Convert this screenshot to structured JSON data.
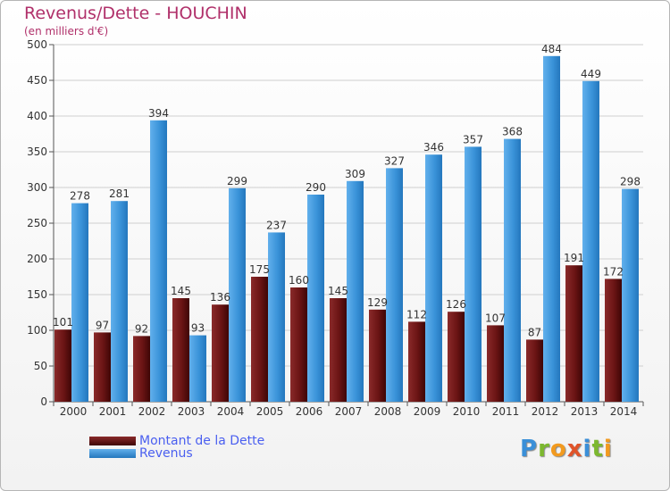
{
  "chart_data": {
    "type": "bar",
    "title": "Revenus/Dette - HOUCHIN",
    "subtitle": "(en milliers d'€)",
    "xlabel": "",
    "ylabel": "",
    "ylim": [
      0,
      500
    ],
    "yticks": [
      0,
      50,
      100,
      150,
      200,
      250,
      300,
      350,
      400,
      450,
      500
    ],
    "grid": true,
    "legend": [
      "Montant de la Dette",
      "Revenus"
    ],
    "legend_position": "bottom-left",
    "categories": [
      "2000",
      "2001",
      "2002",
      "2003",
      "2004",
      "2005",
      "2006",
      "2007",
      "2008",
      "2009",
      "2010",
      "2011",
      "2012",
      "2013",
      "2014"
    ],
    "series": [
      {
        "name": "Montant de la Dette",
        "color": "#6a1414",
        "values": [
          101,
          97,
          92,
          145,
          136,
          175,
          160,
          145,
          129,
          112,
          126,
          107,
          87,
          191,
          172
        ],
        "labels": [
          "101",
          "97",
          "92",
          "145",
          "136",
          "175",
          "160",
          "145",
          "129",
          "112",
          "126",
          "107",
          "87",
          "191",
          "172"
        ]
      },
      {
        "name": "Revenus",
        "color": "#3a93d9",
        "values": [
          278,
          281,
          394,
          93,
          299,
          237,
          290,
          309,
          327,
          346,
          357,
          368,
          484,
          449,
          298
        ],
        "labels": [
          "278",
          "281",
          "394",
          "93",
          "299",
          "237",
          "290",
          "309",
          "327",
          "346",
          "357",
          "368",
          "484",
          "449",
          "298"
        ]
      }
    ]
  }
}
